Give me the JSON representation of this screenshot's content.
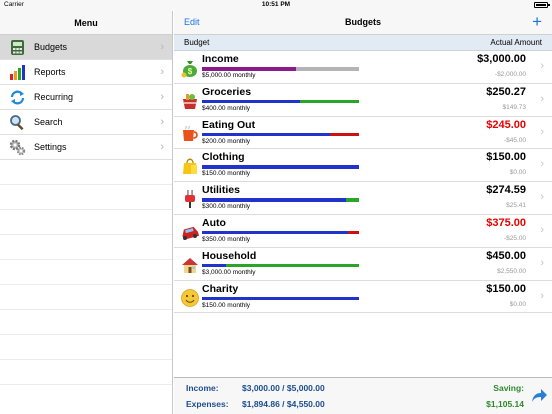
{
  "status_bar": {
    "carrier": "Carrier",
    "time": "10:51 PM"
  },
  "sidebar": {
    "title": "Menu",
    "items": [
      {
        "label": "Budgets",
        "icon": "budgets-icon",
        "selected": true
      },
      {
        "label": "Reports",
        "icon": "reports-icon",
        "selected": false
      },
      {
        "label": "Recurring",
        "icon": "recurring-icon",
        "selected": false
      },
      {
        "label": "Search",
        "icon": "search-icon",
        "selected": false
      },
      {
        "label": "Settings",
        "icon": "settings-icon",
        "selected": false
      }
    ]
  },
  "header": {
    "edit_label": "Edit",
    "title": "Budgets",
    "add_label": "+"
  },
  "columns": {
    "budget": "Budget",
    "actual": "Actual Amount"
  },
  "colors": {
    "accent": "#1a73e8",
    "income_bar": "#8b1a8b",
    "spent_bar": "#2233cc",
    "remaining_bar": "#2aa52a",
    "over_bar": "#cc1111",
    "negative": "#e60000",
    "saving": "#2d8a2d",
    "footer_text": "#1c4d8c"
  },
  "budgets": [
    {
      "name": "Income",
      "icon": "moneybag-icon",
      "budget": "$5,000.00 monthly",
      "amount": "$3,000.00",
      "diff": "-$2,000.00",
      "negative": false,
      "bar": {
        "spent_fraction": 0.6,
        "spent_color": "#8b1a8b",
        "rest_color": "#b4b4b4"
      }
    },
    {
      "name": "Groceries",
      "icon": "groceries-icon",
      "budget": "$400.00 monthly",
      "amount": "$250.27",
      "diff": "$149.73",
      "negative": false,
      "bar": {
        "spent_fraction": 0.626,
        "spent_color": "#2233cc",
        "rest_color": "#2aa52a"
      }
    },
    {
      "name": "Eating Out",
      "icon": "coffee-cup-icon",
      "budget": "$200.00 monthly",
      "amount": "$245.00",
      "diff": "-$45.00",
      "negative": true,
      "bar": {
        "spent_fraction": 0.816,
        "spent_color": "#2233cc",
        "rest_color": "#cc1111"
      }
    },
    {
      "name": "Clothing",
      "icon": "shopping-bag-icon",
      "budget": "$150.00 monthly",
      "amount": "$150.00",
      "diff": "$0.00",
      "negative": false,
      "bar": {
        "spent_fraction": 1.0,
        "spent_color": "#2233cc",
        "rest_color": "#2aa52a"
      }
    },
    {
      "name": "Utilities",
      "icon": "plug-icon",
      "budget": "$300.00 monthly",
      "amount": "$274.59",
      "diff": "$25.41",
      "negative": false,
      "bar": {
        "spent_fraction": 0.915,
        "spent_color": "#2233cc",
        "rest_color": "#2aa52a"
      }
    },
    {
      "name": "Auto",
      "icon": "car-icon",
      "budget": "$350.00 monthly",
      "amount": "$375.00",
      "diff": "-$25.00",
      "negative": true,
      "bar": {
        "spent_fraction": 0.933,
        "spent_color": "#2233cc",
        "rest_color": "#cc1111"
      }
    },
    {
      "name": "Household",
      "icon": "house-icon",
      "budget": "$3,000.00 monthly",
      "amount": "$450.00",
      "diff": "$2,550.00",
      "negative": false,
      "bar": {
        "spent_fraction": 0.15,
        "spent_color": "#2233cc",
        "rest_color": "#2aa52a"
      }
    },
    {
      "name": "Charity",
      "icon": "smiley-icon",
      "budget": "$150.00 monthly",
      "amount": "$150.00",
      "diff": "$0.00",
      "negative": false,
      "bar": {
        "spent_fraction": 1.0,
        "spent_color": "#2233cc",
        "rest_color": "#2aa52a"
      }
    }
  ],
  "summary": {
    "income_label": "Income:",
    "income_value": "$3,000.00 / $5,000.00",
    "expenses_label": "Expenses:",
    "expenses_value": "$1,894.86 / $4,550.00",
    "saving_label": "Saving:",
    "saving_value": "$1,105.14"
  }
}
